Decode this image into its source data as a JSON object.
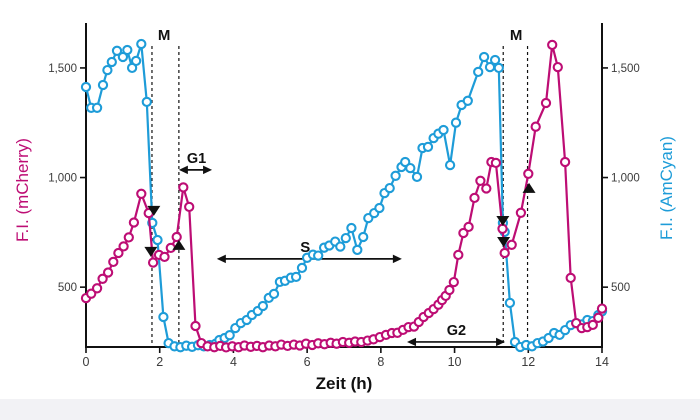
{
  "chart_data": {
    "type": "line",
    "title": "",
    "xlabel": "Zeit (h)",
    "ylabel_left": "F.I. (mCherry)",
    "ylabel_right": "F.I. (AmCyan)",
    "xlim": [
      0,
      14
    ],
    "ylim": [
      227,
      1705
    ],
    "x_ticks": [
      0,
      2,
      4,
      6,
      8,
      10,
      12,
      14
    ],
    "y_ticks": [
      {
        "value": 500,
        "label": "500"
      },
      {
        "value": 1000,
        "label": "1,000"
      },
      {
        "value": 1500,
        "label": "1,500"
      }
    ],
    "grid": false,
    "legend_position": "none (series identified by colored axis labels)",
    "colors": {
      "mcherry": "#bd0d74",
      "amcyan": "#1e9cd8",
      "annotation": "#111111",
      "tick_text": "#3c3c3c",
      "axis": "#111111",
      "marker_fill": "#ffffff",
      "bottom_strip": "#f2f2f5"
    },
    "series": [
      {
        "name": "AmCyan",
        "axis": "right",
        "color_key": "amcyan",
        "marker": "open-circle",
        "points": [
          [
            0.0,
            1413
          ],
          [
            0.14,
            1318
          ],
          [
            0.3,
            1318
          ],
          [
            0.46,
            1422
          ],
          [
            0.58,
            1490
          ],
          [
            0.7,
            1527
          ],
          [
            0.84,
            1578
          ],
          [
            1.0,
            1550
          ],
          [
            1.12,
            1582
          ],
          [
            1.25,
            1500
          ],
          [
            1.36,
            1532
          ],
          [
            1.5,
            1609
          ],
          [
            1.65,
            1345
          ],
          [
            1.8,
            793
          ],
          [
            1.94,
            715
          ],
          [
            2.1,
            364
          ],
          [
            2.24,
            245
          ],
          [
            2.4,
            230
          ],
          [
            2.56,
            226
          ],
          [
            2.72,
            233
          ],
          [
            2.88,
            228
          ],
          [
            3.04,
            235
          ],
          [
            3.2,
            230
          ],
          [
            3.36,
            236
          ],
          [
            3.52,
            242
          ],
          [
            3.62,
            259
          ],
          [
            3.76,
            268
          ],
          [
            3.9,
            281
          ],
          [
            4.05,
            313
          ],
          [
            4.2,
            336
          ],
          [
            4.36,
            350
          ],
          [
            4.5,
            373
          ],
          [
            4.66,
            391
          ],
          [
            4.8,
            414
          ],
          [
            4.96,
            451
          ],
          [
            5.1,
            469
          ],
          [
            5.26,
            524
          ],
          [
            5.4,
            529
          ],
          [
            5.56,
            543
          ],
          [
            5.7,
            547
          ],
          [
            5.86,
            588
          ],
          [
            6.0,
            634
          ],
          [
            6.16,
            648
          ],
          [
            6.3,
            644
          ],
          [
            6.46,
            680
          ],
          [
            6.6,
            690
          ],
          [
            6.76,
            708
          ],
          [
            6.9,
            685
          ],
          [
            7.05,
            724
          ],
          [
            7.2,
            770
          ],
          [
            7.36,
            670
          ],
          [
            7.52,
            729
          ],
          [
            7.66,
            815
          ],
          [
            7.82,
            838
          ],
          [
            7.96,
            861
          ],
          [
            8.1,
            929
          ],
          [
            8.24,
            952
          ],
          [
            8.4,
            1008
          ],
          [
            8.56,
            1048
          ],
          [
            8.66,
            1071
          ],
          [
            8.8,
            1043
          ],
          [
            8.98,
            1003
          ],
          [
            9.13,
            1135
          ],
          [
            9.28,
            1140
          ],
          [
            9.43,
            1180
          ],
          [
            9.56,
            1200
          ],
          [
            9.7,
            1217
          ],
          [
            9.88,
            1057
          ],
          [
            10.04,
            1250
          ],
          [
            10.19,
            1331
          ],
          [
            10.36,
            1350
          ],
          [
            10.64,
            1482
          ],
          [
            10.8,
            1550
          ],
          [
            10.96,
            1504
          ],
          [
            11.1,
            1536
          ],
          [
            11.2,
            1500
          ],
          [
            11.31,
            793
          ],
          [
            11.36,
            752
          ],
          [
            11.5,
            428
          ],
          [
            11.64,
            250
          ],
          [
            11.78,
            227
          ],
          [
            11.94,
            236
          ],
          [
            12.1,
            230
          ],
          [
            12.25,
            245
          ],
          [
            12.4,
            252
          ],
          [
            12.55,
            268
          ],
          [
            12.7,
            291
          ],
          [
            12.85,
            282
          ],
          [
            13.0,
            304
          ],
          [
            13.15,
            327
          ],
          [
            13.3,
            336
          ],
          [
            13.45,
            330
          ],
          [
            13.6,
            350
          ],
          [
            13.75,
            345
          ],
          [
            13.9,
            373
          ],
          [
            14.0,
            390
          ]
        ]
      },
      {
        "name": "mCherry",
        "axis": "left",
        "color_key": "mcherry",
        "marker": "open-circle",
        "points": [
          [
            0.0,
            450
          ],
          [
            0.14,
            470
          ],
          [
            0.3,
            495
          ],
          [
            0.45,
            538
          ],
          [
            0.6,
            567
          ],
          [
            0.74,
            615
          ],
          [
            0.88,
            656
          ],
          [
            1.02,
            686
          ],
          [
            1.16,
            727
          ],
          [
            1.3,
            795
          ],
          [
            1.5,
            926
          ],
          [
            1.7,
            838
          ],
          [
            1.82,
            612
          ],
          [
            1.98,
            647
          ],
          [
            2.13,
            638
          ],
          [
            2.3,
            679
          ],
          [
            2.46,
            729
          ],
          [
            2.64,
            955
          ],
          [
            2.8,
            866
          ],
          [
            2.97,
            323
          ],
          [
            3.13,
            245
          ],
          [
            3.3,
            230
          ],
          [
            3.48,
            226
          ],
          [
            3.64,
            232
          ],
          [
            3.8,
            225
          ],
          [
            3.97,
            230
          ],
          [
            4.14,
            226
          ],
          [
            4.3,
            234
          ],
          [
            4.47,
            228
          ],
          [
            4.64,
            232
          ],
          [
            4.8,
            226
          ],
          [
            4.97,
            234
          ],
          [
            5.14,
            230
          ],
          [
            5.3,
            238
          ],
          [
            5.47,
            232
          ],
          [
            5.64,
            238
          ],
          [
            5.8,
            234
          ],
          [
            5.97,
            242
          ],
          [
            6.14,
            236
          ],
          [
            6.3,
            244
          ],
          [
            6.47,
            240
          ],
          [
            6.64,
            246
          ],
          [
            6.8,
            242
          ],
          [
            6.97,
            250
          ],
          [
            7.14,
            246
          ],
          [
            7.3,
            252
          ],
          [
            7.47,
            250
          ],
          [
            7.64,
            256
          ],
          [
            7.8,
            262
          ],
          [
            7.97,
            272
          ],
          [
            8.14,
            282
          ],
          [
            8.3,
            291
          ],
          [
            8.45,
            292
          ],
          [
            8.6,
            305
          ],
          [
            8.75,
            318
          ],
          [
            8.9,
            320
          ],
          [
            9.03,
            341
          ],
          [
            9.16,
            364
          ],
          [
            9.3,
            382
          ],
          [
            9.43,
            400
          ],
          [
            9.56,
            420
          ],
          [
            9.66,
            441
          ],
          [
            9.76,
            460
          ],
          [
            9.86,
            487
          ],
          [
            9.98,
            523
          ],
          [
            10.1,
            647
          ],
          [
            10.24,
            747
          ],
          [
            10.38,
            775
          ],
          [
            10.54,
            907
          ],
          [
            10.7,
            985
          ],
          [
            10.86,
            950
          ],
          [
            11.0,
            1071
          ],
          [
            11.12,
            1067
          ],
          [
            11.3,
            766
          ],
          [
            11.36,
            656
          ],
          [
            11.55,
            693
          ],
          [
            11.8,
            839
          ],
          [
            12.0,
            1017
          ],
          [
            12.2,
            1232
          ],
          [
            12.48,
            1340
          ],
          [
            12.65,
            1605
          ],
          [
            12.8,
            1504
          ],
          [
            13.0,
            1071
          ],
          [
            13.15,
            542
          ],
          [
            13.3,
            336
          ],
          [
            13.45,
            313
          ],
          [
            13.6,
            318
          ],
          [
            13.75,
            328
          ],
          [
            13.9,
            360
          ],
          [
            14.0,
            402
          ]
        ]
      }
    ],
    "phase_lines": {
      "style": "black dashed vertical",
      "times": [
        1.79,
        2.52,
        11.32,
        11.98
      ]
    },
    "m_labels": [
      {
        "label": "M",
        "t": 2.12
      },
      {
        "label": "M",
        "t": 11.67
      }
    ],
    "phase_arrows": [
      {
        "label": "G1",
        "t1": 2.52,
        "t2": 3.42,
        "value": 1035,
        "label_t": 3.0
      },
      {
        "label": "S",
        "t1": 3.55,
        "t2": 8.57,
        "value": 629,
        "label_t": 5.95
      },
      {
        "label": "G2",
        "t1": 8.71,
        "t2": 11.37,
        "value": 250,
        "label_t": 10.05
      }
    ],
    "event_triangles": [
      {
        "dir": "down",
        "t": 1.84,
        "value": 848
      },
      {
        "dir": "down",
        "t": 1.76,
        "value": 661
      },
      {
        "dir": "up",
        "t": 2.52,
        "value": 693
      },
      {
        "dir": "down",
        "t": 11.31,
        "value": 802
      },
      {
        "dir": "down",
        "t": 11.33,
        "value": 706
      },
      {
        "dir": "up",
        "t": 12.02,
        "value": 953
      }
    ]
  }
}
